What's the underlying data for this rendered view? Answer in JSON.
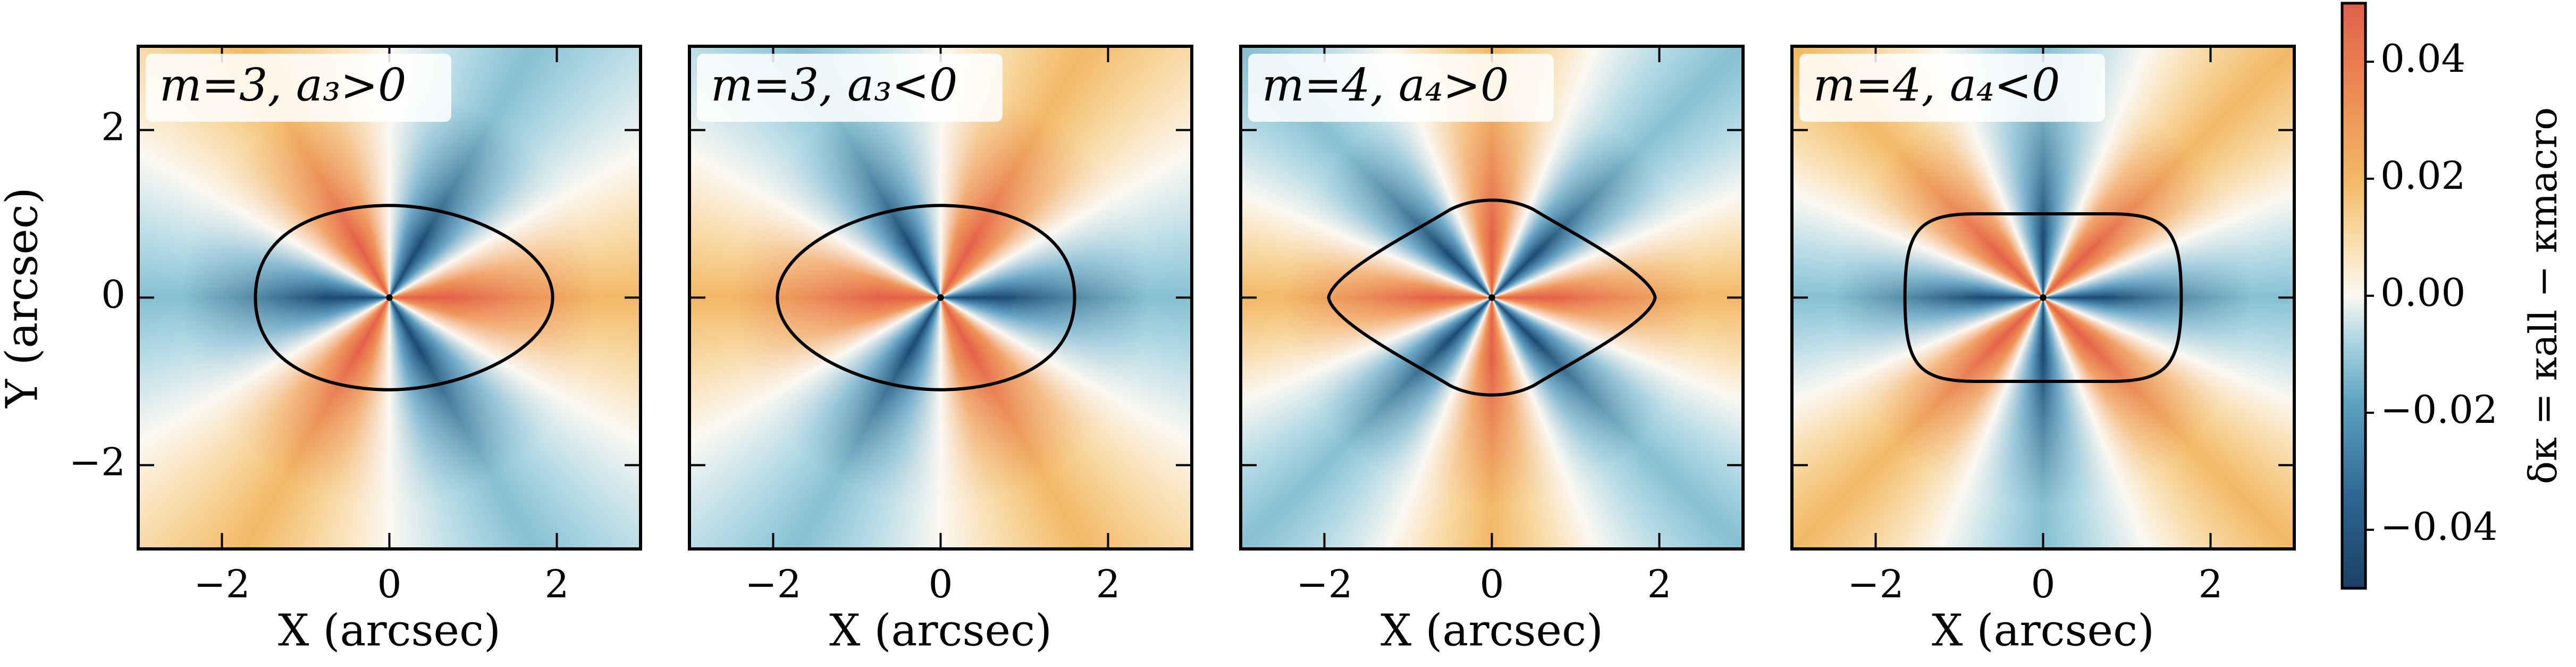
{
  "chart_data": [
    {
      "type": "heatmap",
      "title": "m=3,  a₃>0",
      "xlabel": "X (arcsec)",
      "ylabel": "Y (arcsec)",
      "xlim": [
        -3,
        3
      ],
      "ylim": [
        -3,
        3
      ],
      "xticks": [
        {
          "value": -2,
          "label": "−2"
        },
        0,
        2
      ],
      "yticks": [
        {
          "value": -2,
          "label": "−2"
        },
        0,
        2
      ]
    },
    {
      "type": "heatmap",
      "title": "m=3,  a₃<0",
      "xlabel": "X (arcsec)",
      "xlim": [
        -3,
        3
      ],
      "ylim": [
        -3,
        3
      ],
      "xticks": [
        {
          "value": -2,
          "label": "−2"
        },
        0,
        2
      ],
      "yticks": [
        -2,
        0,
        2
      ],
      "yticklabels": false
    },
    {
      "type": "heatmap",
      "title": "m=4,  a₄>0",
      "xlabel": "X (arcsec)",
      "xlim": [
        -3,
        3
      ],
      "ylim": [
        -3,
        3
      ],
      "xticks": [
        {
          "value": -2,
          "label": "−2"
        },
        0,
        2
      ],
      "yticks": [
        -2,
        0,
        2
      ],
      "yticklabels": false
    },
    {
      "type": "heatmap",
      "title": "m=4,  a₄<0",
      "xlabel": "X (arcsec)",
      "xlim": [
        -3,
        3
      ],
      "ylim": [
        -3,
        3
      ],
      "xticks": [
        {
          "value": -2,
          "label": "−2"
        },
        0,
        2
      ],
      "yticks": [
        -2,
        0,
        2
      ],
      "yticklabels": false
    },
    {
      "type": "colorbar",
      "label": "δκ = κall − κmacro",
      "lim": [
        -0.05,
        0.05
      ],
      "ticks": [
        {
          "value": -0.04,
          "label": "−0.04"
        },
        {
          "value": -0.02,
          "label": "−0.02"
        },
        {
          "value": 0,
          "label": "0.00"
        },
        0.02,
        0.04
      ]
    }
  ]
}
